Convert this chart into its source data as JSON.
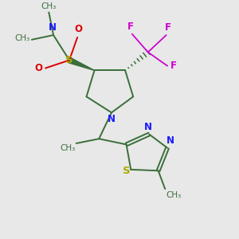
{
  "bg_color": "#e8e8e8",
  "bond_color": "#3a6e3a",
  "N_color": "#1a1aff",
  "S_sulfonamide_color": "#aaaa00",
  "S_thiadiazole_color": "#aaaa00",
  "O_color": "#dd0000",
  "F_color": "#cc00cc",
  "line_width": 1.4,
  "font_size": 8.5,
  "small_font": 7.5,
  "fig_w": 3.0,
  "fig_h": 3.0,
  "dpi": 100,
  "xlim": [
    0,
    10
  ],
  "ylim": [
    0,
    10
  ]
}
